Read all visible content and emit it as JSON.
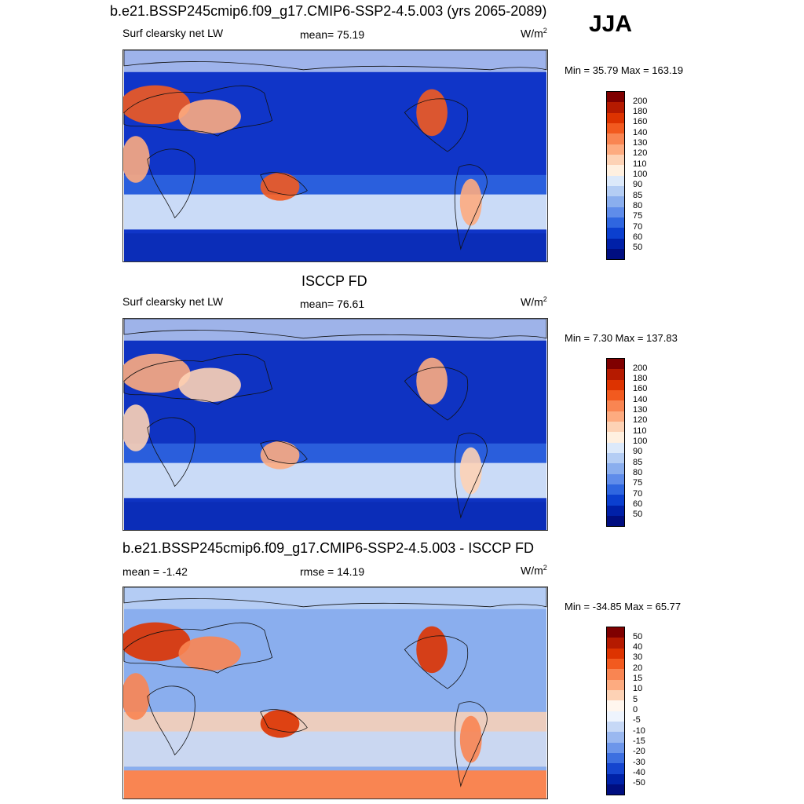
{
  "title": "b.e21.BSSP245cmip6.f09_g17.CMIP6-SSP2-4.5.003 (yrs 2065-2089)",
  "season": "JJA",
  "panels": [
    {
      "title": "",
      "left_label": "Surf clearsky net LW",
      "center_label": "mean=  75.19",
      "unit": "W/m",
      "unit_sup": "2",
      "minmax": "Min =  35.79 Max = 163.19",
      "colorbar_ticks": [
        "200",
        "180",
        "160",
        "140",
        "130",
        "120",
        "110",
        "100",
        "90",
        "85",
        "80",
        "75",
        "70",
        "60",
        "50"
      ],
      "colors": [
        "#7f0000",
        "#b51a00",
        "#dd3300",
        "#f25a1f",
        "#f98552",
        "#fdab80",
        "#fdd2b5",
        "#fff0e0",
        "#dce9fa",
        "#b4cdf4",
        "#8aaeee",
        "#5f8cea",
        "#2f66e0",
        "#0b3fcf",
        "#0020a8",
        "#000e80"
      ]
    },
    {
      "title": "ISCCP FD",
      "left_label": "Surf clearsky net LW",
      "center_label": "mean=  76.61",
      "unit": "W/m",
      "unit_sup": "2",
      "minmax": "Min =   7.30 Max = 137.83",
      "colorbar_ticks": [
        "200",
        "180",
        "160",
        "140",
        "130",
        "120",
        "110",
        "100",
        "90",
        "85",
        "80",
        "75",
        "70",
        "60",
        "50"
      ],
      "colors": [
        "#7f0000",
        "#b51a00",
        "#dd3300",
        "#f25a1f",
        "#f98552",
        "#fdab80",
        "#fdd2b5",
        "#fff0e0",
        "#dce9fa",
        "#b4cdf4",
        "#8aaeee",
        "#5f8cea",
        "#2f66e0",
        "#0b3fcf",
        "#0020a8",
        "#000e80"
      ]
    },
    {
      "title": "b.e21.BSSP245cmip6.f09_g17.CMIP6-SSP2-4.5.003 - ISCCP FD",
      "left_label": "mean =  -1.42",
      "center_label": "rmse =  14.19",
      "unit": "W/m",
      "unit_sup": "2",
      "minmax": "Min = -34.85 Max =  65.77",
      "colorbar_ticks": [
        "50",
        "40",
        "30",
        "20",
        "15",
        "10",
        "5",
        "0",
        "-5",
        "-10",
        "-15",
        "-20",
        "-30",
        "-40",
        "-50"
      ],
      "colors": [
        "#7f0000",
        "#b51a00",
        "#dd3300",
        "#f25a1f",
        "#f98552",
        "#fdab80",
        "#fdd2b5",
        "#fff6ee",
        "#eef4fd",
        "#c6d8f6",
        "#9ab8f0",
        "#6d96ea",
        "#3d6fe0",
        "#1545cf",
        "#0022a8",
        "#000e80"
      ]
    }
  ]
}
